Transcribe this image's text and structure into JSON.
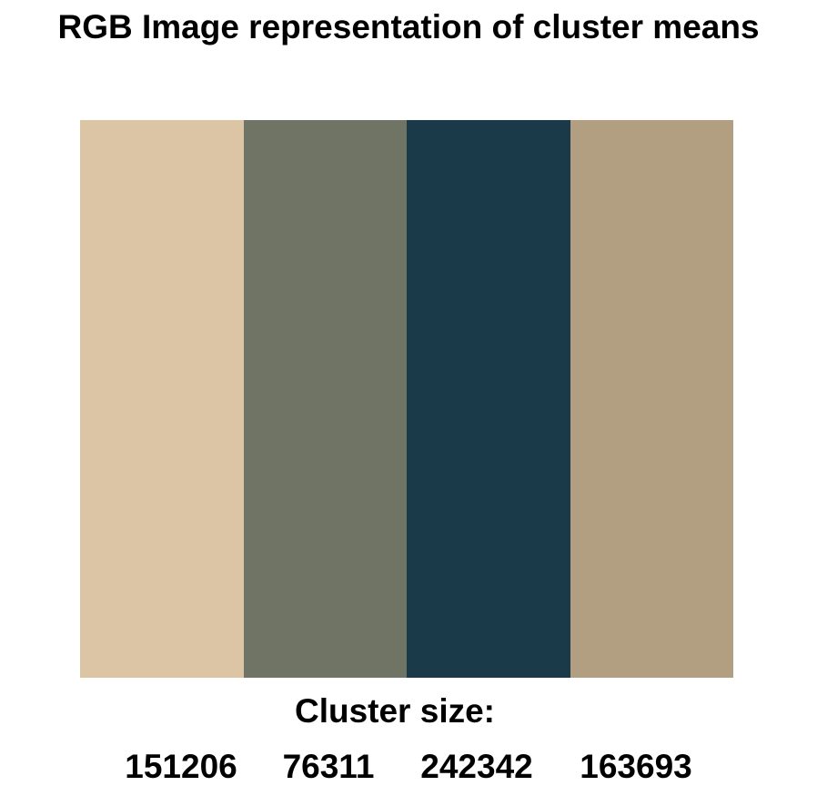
{
  "chart_data": {
    "type": "heatmap",
    "title": "RGB Image representation of cluster means",
    "size_label": "Cluster size:",
    "clusters": [
      {
        "color": "#dbc5a4",
        "size": "151206"
      },
      {
        "color": "#6f7464",
        "size": "76311"
      },
      {
        "color": "#1a3a4a",
        "size": "242342"
      },
      {
        "color": "#b29f81",
        "size": "163693"
      }
    ]
  }
}
